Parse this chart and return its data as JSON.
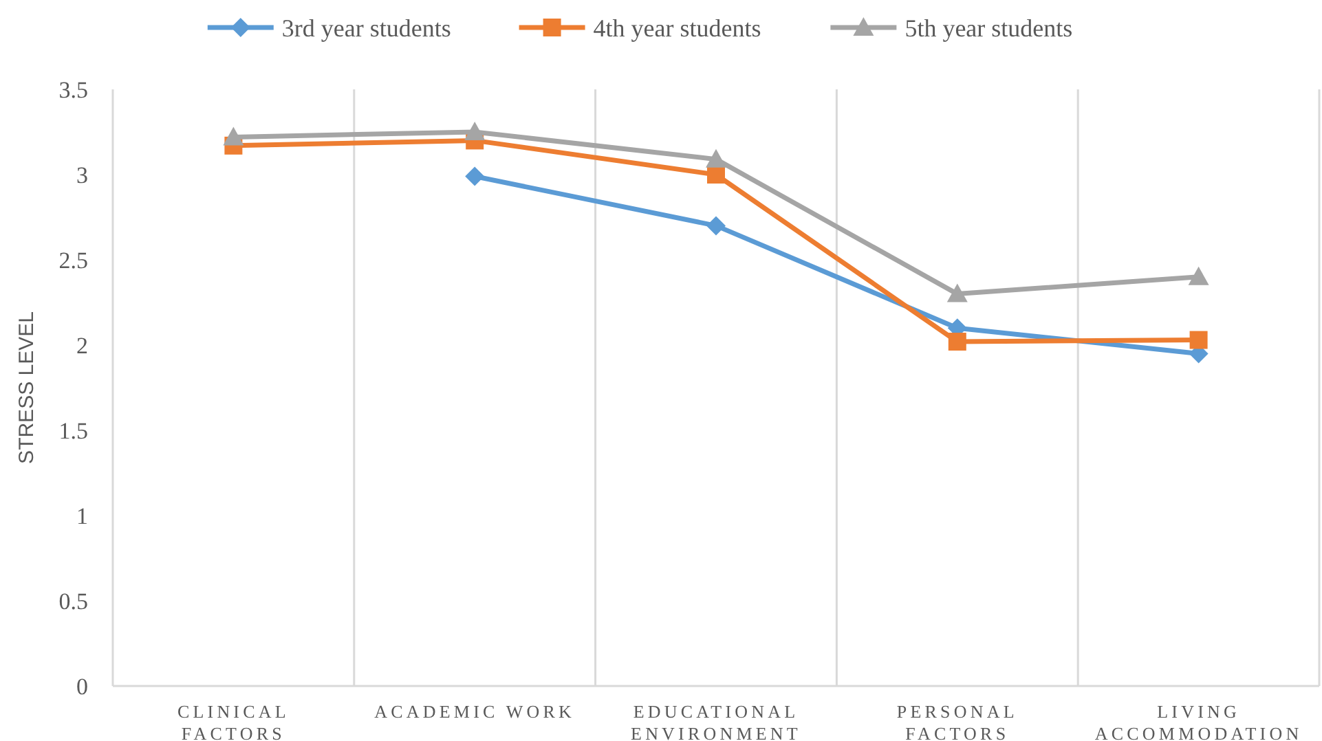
{
  "chart_data": {
    "type": "line",
    "ylabel": "STRESS LEVEL",
    "categories": [
      "CLINICAL\nFACTORS",
      "ACADEMIC WORK",
      "EDUCATIONAL\nENVIRONMENT",
      "PERSONAL\nFACTORS",
      "LIVING\nACCOMMODATION"
    ],
    "series": [
      {
        "name": "3rd year students",
        "color": "#5b9bd5",
        "marker": "diamond",
        "values": [
          null,
          2.99,
          2.7,
          2.1,
          1.95
        ]
      },
      {
        "name": "4th year students",
        "color": "#ed7d31",
        "marker": "square",
        "values": [
          3.17,
          3.2,
          3.0,
          2.02,
          2.03
        ]
      },
      {
        "name": "5th year students",
        "color": "#a5a5a5",
        "marker": "triangle",
        "values": [
          3.22,
          3.25,
          3.09,
          2.3,
          2.4
        ]
      }
    ],
    "ylim": [
      0,
      3.5
    ],
    "yticks": [
      0,
      0.5,
      1,
      1.5,
      2,
      2.5,
      3,
      3.5
    ],
    "grid": "x",
    "legend": "top"
  }
}
